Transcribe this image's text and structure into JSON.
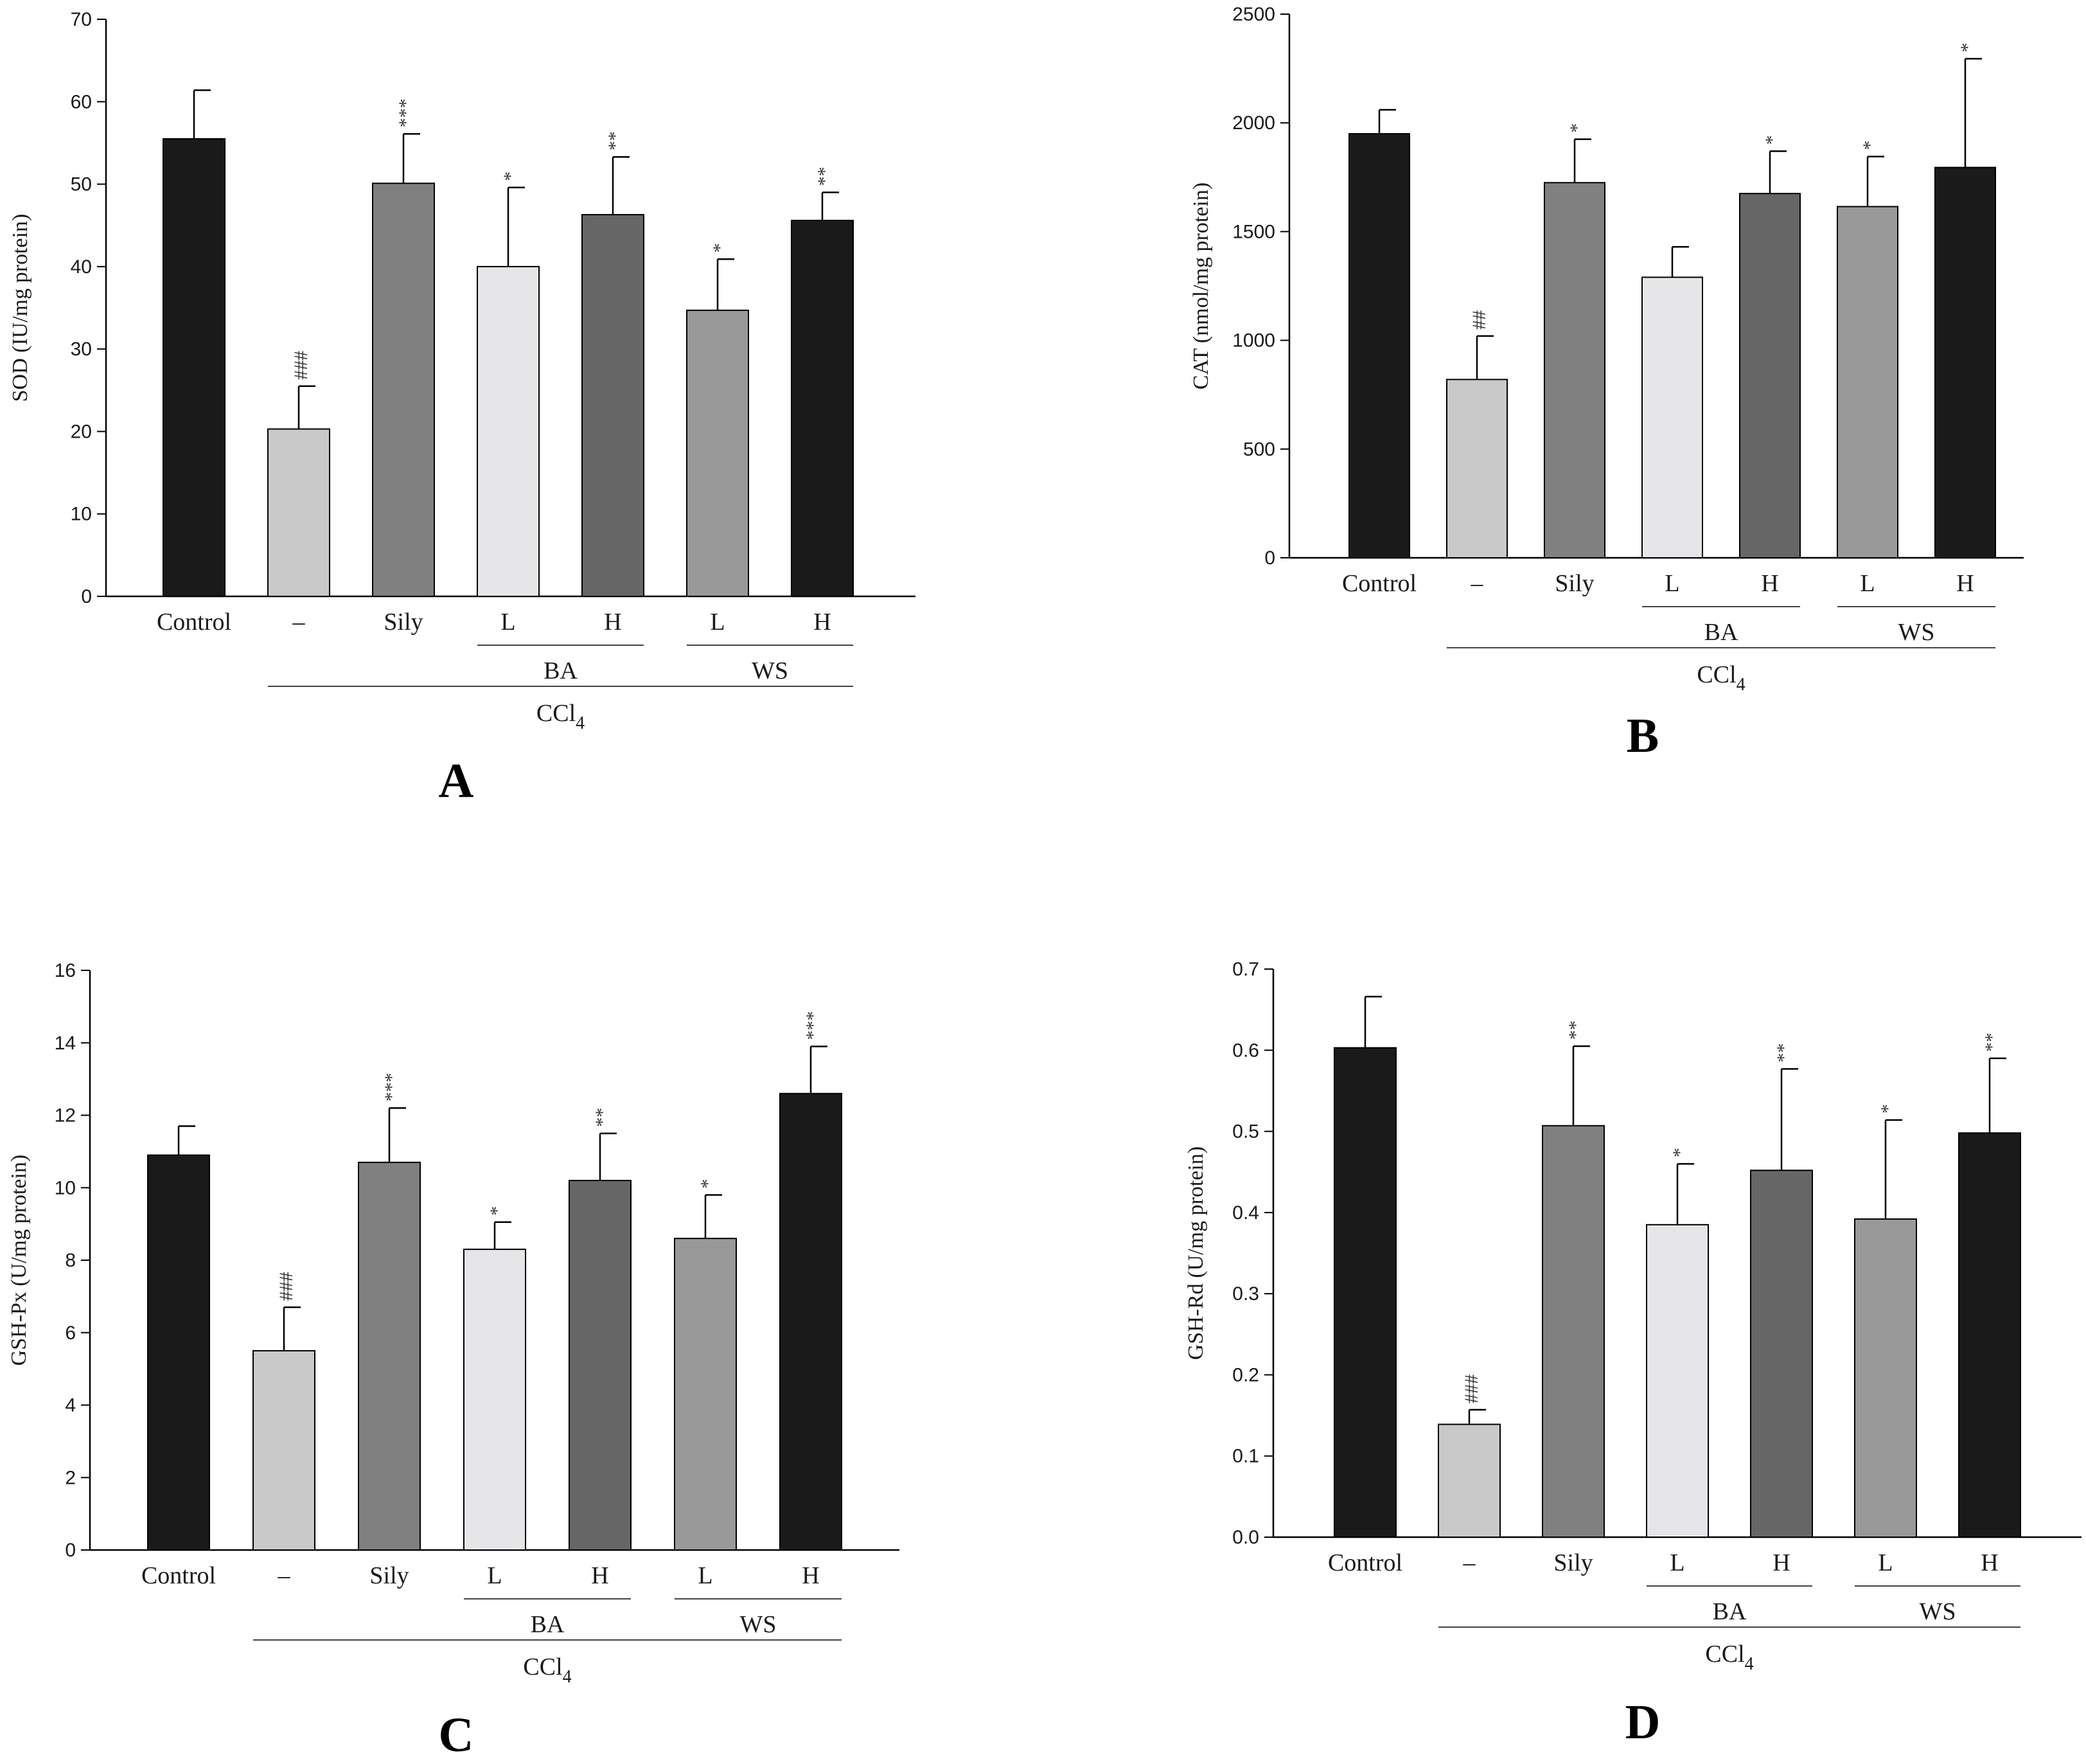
{
  "figure": {
    "colors": {
      "bar_fills": [
        "#1a1a1a",
        "#c9c9c9",
        "#808080",
        "#e6e6e9",
        "#666666",
        "#999999",
        "#1a1a1a"
      ],
      "axis": "#000000",
      "bar_stroke": "#000000",
      "group_line": "#444444"
    }
  },
  "chart_data": [
    {
      "type": "bar",
      "panel": "A",
      "categories": [
        "Control",
        "–",
        "Sily",
        "L",
        "H",
        "L",
        "H"
      ],
      "values": [
        55.5,
        20.3,
        50.1,
        40.0,
        46.3,
        34.7,
        45.6
      ],
      "errors": [
        5.9,
        5.2,
        6.0,
        9.6,
        7.0,
        6.2,
        3.4
      ],
      "significance": [
        "",
        "###",
        "***",
        "*",
        "**",
        "*",
        "**"
      ],
      "ylabel": "SOD (IU/mg protein)",
      "ylim": [
        0,
        70
      ],
      "yticks": [
        "0",
        "10",
        "20",
        "30",
        "40",
        "50",
        "60",
        "70"
      ],
      "groups": [
        {
          "label": "BA",
          "from": 3,
          "to": 4
        },
        {
          "label": "WS",
          "from": 5,
          "to": 6
        }
      ],
      "treatment": {
        "label": "CCl",
        "subscript": "4",
        "from": 1,
        "to": 6
      }
    },
    {
      "type": "bar",
      "panel": "B",
      "categories": [
        "Control",
        "–",
        "Sily",
        "L",
        "H",
        "L",
        "H"
      ],
      "values": [
        1950,
        820,
        1725,
        1290,
        1675,
        1615,
        1795
      ],
      "errors": [
        110,
        200,
        200,
        140,
        195,
        230,
        500
      ],
      "significance": [
        "",
        "##",
        "*",
        "",
        "*",
        "*",
        "*"
      ],
      "ylabel": "CAT (nmol/mg protein)",
      "ylim": [
        0,
        2500
      ],
      "yticks": [
        "0",
        "500",
        "1000",
        "1500",
        "2000",
        "2500"
      ],
      "groups": [
        {
          "label": "BA",
          "from": 3,
          "to": 4
        },
        {
          "label": "WS",
          "from": 5,
          "to": 6
        }
      ],
      "treatment": {
        "label": "CCl",
        "subscript": "4",
        "from": 1,
        "to": 6
      }
    },
    {
      "type": "bar",
      "panel": "C",
      "categories": [
        "Control",
        "–",
        "Sily",
        "L",
        "H",
        "L",
        "H"
      ],
      "values": [
        10.9,
        5.5,
        10.7,
        8.3,
        10.2,
        8.6,
        12.6
      ],
      "errors": [
        0.8,
        1.2,
        1.5,
        0.75,
        1.3,
        1.2,
        1.3
      ],
      "significance": [
        "",
        "###",
        "***",
        "*",
        "**",
        "*",
        "***"
      ],
      "ylabel": "GSH-Px (U/mg protein)",
      "ylim": [
        0,
        16
      ],
      "yticks": [
        "0",
        "2",
        "4",
        "6",
        "8",
        "10",
        "12",
        "14",
        "16"
      ],
      "groups": [
        {
          "label": "BA",
          "from": 3,
          "to": 4
        },
        {
          "label": "WS",
          "from": 5,
          "to": 6
        }
      ],
      "treatment": {
        "label": "CCl",
        "subscript": "4",
        "from": 1,
        "to": 6
      }
    },
    {
      "type": "bar",
      "panel": "D",
      "categories": [
        "Control",
        "–",
        "Sily",
        "L",
        "H",
        "L",
        "H"
      ],
      "values": [
        0.603,
        0.139,
        0.507,
        0.385,
        0.452,
        0.392,
        0.498
      ],
      "errors": [
        0.063,
        0.018,
        0.098,
        0.075,
        0.125,
        0.122,
        0.092
      ],
      "significance": [
        "",
        "###",
        "**",
        "*",
        "**",
        "*",
        "**"
      ],
      "ylabel": "GSH-Rd (U/mg protein)",
      "ylim": [
        0,
        0.7
      ],
      "yticks": [
        "0.0",
        "0.1",
        "0.2",
        "0.3",
        "0.4",
        "0.5",
        "0.6",
        "0.7"
      ],
      "groups": [
        {
          "label": "BA",
          "from": 3,
          "to": 4
        },
        {
          "label": "WS",
          "from": 5,
          "to": 6
        }
      ],
      "treatment": {
        "label": "CCl",
        "subscript": "4",
        "from": 1,
        "to": 6
      }
    }
  ]
}
